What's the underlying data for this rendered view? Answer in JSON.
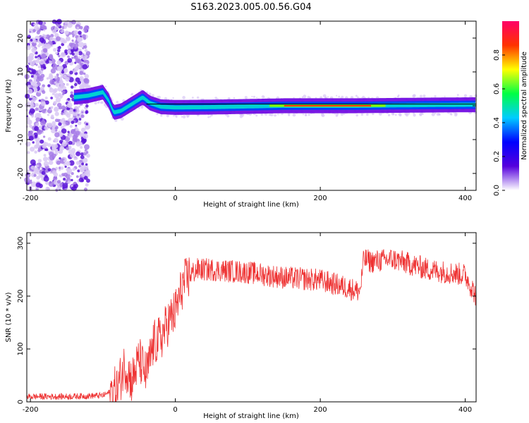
{
  "title": "S163.2023.005.00.56.G04",
  "chart_data": [
    {
      "type": "heatmap",
      "xlabel": "Height of straight line (km)",
      "ylabel": "Frequency (Hz)",
      "xlim": [
        -205,
        415
      ],
      "ylim": [
        -25,
        25
      ],
      "xticks": [
        -200,
        0,
        200,
        400
      ],
      "yticks": [
        -20,
        -10,
        0,
        10,
        20
      ],
      "colorbar": {
        "label": "Normalized spectral amplitude",
        "range": [
          0,
          1
        ],
        "ticks": [
          0.0,
          0.2,
          0.4,
          0.6,
          0.8
        ],
        "colormap": [
          "#ffffff",
          "#5500dd",
          "#0000ff",
          "#00ccff",
          "#00ff44",
          "#ffff00",
          "#ff3300",
          "#ff0066"
        ]
      },
      "ridge": [
        {
          "x": -140,
          "y": 2.5
        },
        {
          "x": -120,
          "y": 3.0
        },
        {
          "x": -100,
          "y": 4.0
        },
        {
          "x": -92,
          "y": 1.5
        },
        {
          "x": -85,
          "y": -2.0
        },
        {
          "x": -75,
          "y": -1.5
        },
        {
          "x": -60,
          "y": 0.5
        },
        {
          "x": -45,
          "y": 2.5
        },
        {
          "x": -35,
          "y": 0.8
        },
        {
          "x": -20,
          "y": -0.3
        },
        {
          "x": 0,
          "y": -0.5
        },
        {
          "x": 50,
          "y": -0.4
        },
        {
          "x": 100,
          "y": -0.2
        },
        {
          "x": 150,
          "y": 0.0
        },
        {
          "x": 200,
          "y": 0.0
        },
        {
          "x": 250,
          "y": 0.0
        },
        {
          "x": 300,
          "y": 0.1
        },
        {
          "x": 350,
          "y": 0.2
        },
        {
          "x": 415,
          "y": 0.3
        }
      ],
      "line_y": 0.5
    },
    {
      "type": "line",
      "xlabel": "Height of straight line (km)",
      "ylabel": "SNR (10 * v/v)",
      "xlim": [
        -205,
        415
      ],
      "ylim": [
        0,
        320
      ],
      "xticks": [
        -200,
        0,
        200,
        400
      ],
      "yticks": [
        0,
        100,
        200,
        300
      ],
      "color": "#ee3333",
      "series": [
        {
          "x": [
            -205,
            -150,
            -100,
            -80,
            -70,
            -60,
            -50,
            -40,
            -30,
            -20,
            -10,
            0,
            10,
            20,
            30,
            50,
            100,
            150,
            200,
            240,
            250,
            255,
            260,
            270,
            300,
            350,
            400,
            415
          ],
          "values": [
            10,
            10,
            12,
            25,
            70,
            40,
            80,
            50,
            110,
            120,
            150,
            170,
            220,
            240,
            250,
            250,
            245,
            235,
            230,
            215,
            210,
            210,
            270,
            265,
            270,
            250,
            240,
            200
          ]
        }
      ]
    }
  ]
}
